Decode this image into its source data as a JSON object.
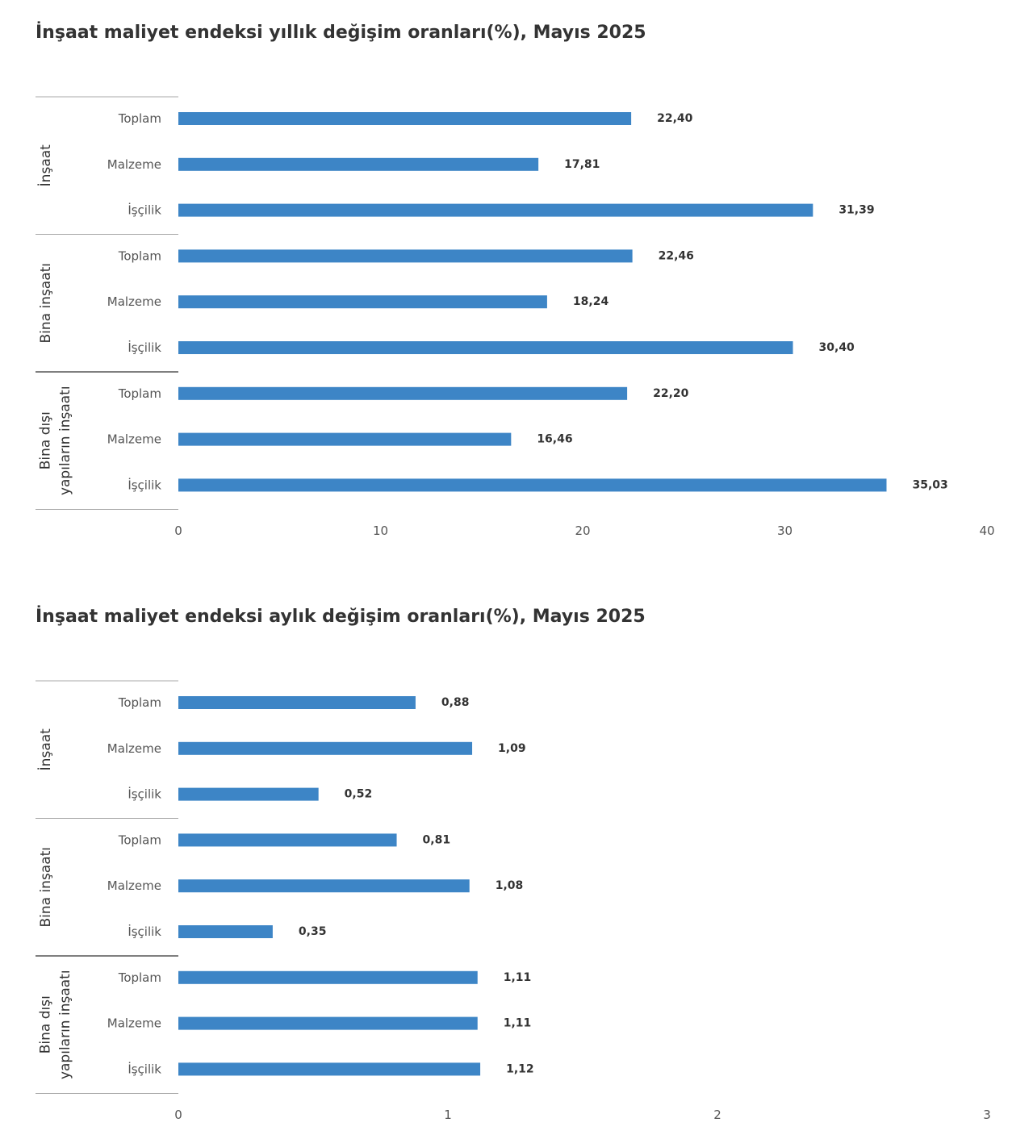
{
  "chart_data": [
    {
      "type": "bar",
      "orientation": "horizontal",
      "title": "İnşaat maliyet endeksi yıllık değişim oranları(%), Mayıs 2025",
      "groups": [
        {
          "name": "İnşaat",
          "categories": [
            "Toplam",
            "Malzeme",
            "İşçilik"
          ],
          "values": [
            22.4,
            17.81,
            31.39
          ],
          "labels": [
            "22,40",
            "17,81",
            "31,39"
          ]
        },
        {
          "name": "Bina inşaatı",
          "categories": [
            "Toplam",
            "Malzeme",
            "İşçilik"
          ],
          "values": [
            22.46,
            18.24,
            30.4
          ],
          "labels": [
            "22,46",
            "18,24",
            "30,40"
          ]
        },
        {
          "name": "Bina dışı yapıların inşaatı",
          "categories": [
            "Toplam",
            "Malzeme",
            "İşçilik"
          ],
          "values": [
            22.2,
            16.46,
            35.03
          ],
          "labels": [
            "22,20",
            "16,46",
            "35,03"
          ]
        }
      ],
      "xlim": [
        0,
        40
      ],
      "xticks": [
        "0",
        "10",
        "20",
        "30",
        "40"
      ],
      "xlabel": "",
      "ylabel": "",
      "grid": false,
      "bar_color": "#3d85c6"
    },
    {
      "type": "bar",
      "orientation": "horizontal",
      "title": "İnşaat maliyet endeksi aylık değişim oranları(%), Mayıs 2025",
      "groups": [
        {
          "name": "İnşaat",
          "categories": [
            "Toplam",
            "Malzeme",
            "İşçilik"
          ],
          "values": [
            0.88,
            1.09,
            0.52
          ],
          "labels": [
            "0,88",
            "1,09",
            "0,52"
          ]
        },
        {
          "name": "Bina inşaatı",
          "categories": [
            "Toplam",
            "Malzeme",
            "İşçilik"
          ],
          "values": [
            0.81,
            1.08,
            0.35
          ],
          "labels": [
            "0,81",
            "1,08",
            "0,35"
          ]
        },
        {
          "name": "Bina dışı yapıların inşaatı",
          "categories": [
            "Toplam",
            "Malzeme",
            "İşçilik"
          ],
          "values": [
            1.11,
            1.11,
            1.12
          ],
          "labels": [
            "1,11",
            "1,11",
            "1,12"
          ]
        }
      ],
      "xlim": [
        0,
        3
      ],
      "xticks": [
        "0",
        "1",
        "2",
        "3"
      ],
      "xlabel": "",
      "ylabel": "",
      "grid": false,
      "bar_color": "#3d85c6"
    }
  ]
}
